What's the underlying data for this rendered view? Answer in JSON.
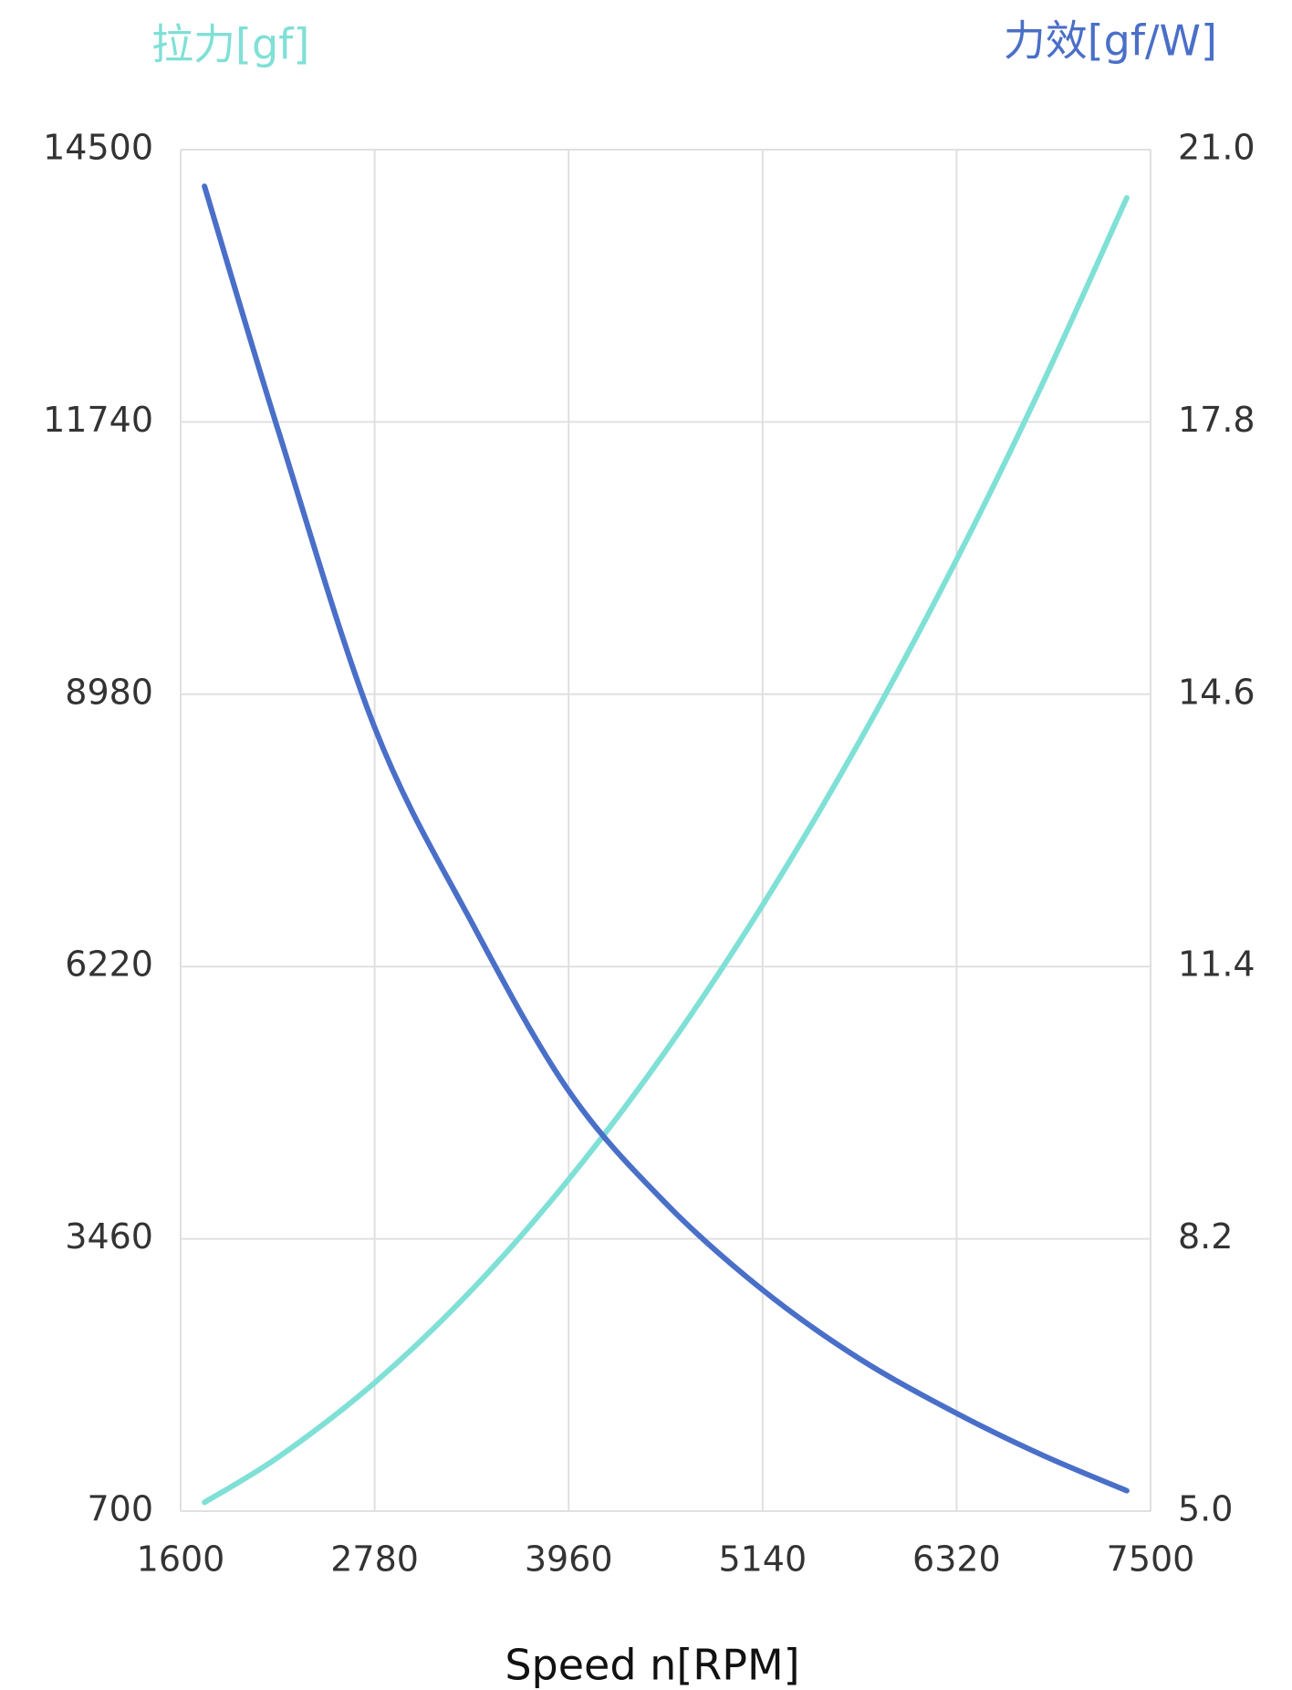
{
  "chart_data": {
    "type": "line",
    "left_axis_title": "拉力[gf]",
    "right_axis_title": "力效[gf/W]",
    "x_label": "Speed n[RPM]",
    "x": [
      1745,
      2200,
      2780,
      3370,
      3960,
      4550,
      5140,
      5730,
      6320,
      6840,
      7355
    ],
    "series": [
      {
        "name": "拉力[gf]",
        "color": "#7fe0d6",
        "values": [
          789,
          1254,
          2002,
          2941,
          4062,
          5362,
          6843,
          8504,
          10345,
          12118,
          14011
        ]
      },
      {
        "name": "力效[gf/W]",
        "color": "#4a6fc8",
        "axis": "y2",
        "values": [
          20.57,
          17.66,
          14.21,
          11.92,
          9.94,
          8.62,
          7.6,
          6.79,
          6.15,
          5.66,
          5.24
        ]
      }
    ],
    "xlim": [
      1600,
      7500
    ],
    "xticks": [
      1600,
      2780,
      3960,
      5140,
      6320,
      7500
    ],
    "ylim": [
      700,
      14500
    ],
    "yticks": [
      700,
      3460,
      6220,
      8980,
      11740,
      14500
    ],
    "y2lim": [
      5.0,
      21.0
    ],
    "y2ticks": [
      {
        "value": 5,
        "label": "5.0"
      },
      8.2,
      11.4,
      14.6,
      17.8,
      {
        "value": 21,
        "label": "21.0"
      }
    ],
    "grid": true
  }
}
